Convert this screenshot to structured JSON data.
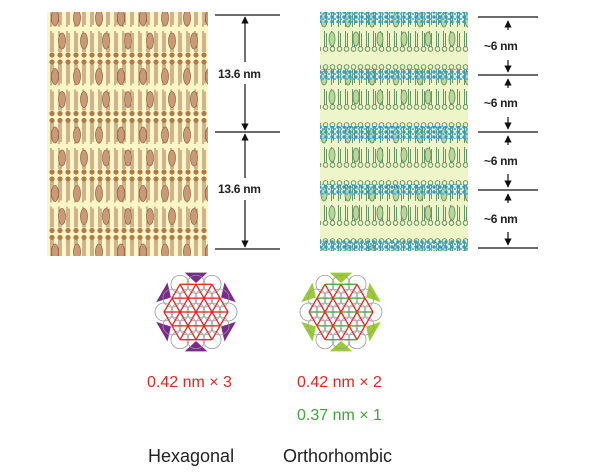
{
  "left_panel": {
    "dimensions": [
      "13.6 nm",
      "13.6 nm"
    ]
  },
  "right_panel": {
    "dimensions": [
      "~6 nm",
      "~6 nm",
      "~6 nm",
      "~6 nm"
    ]
  },
  "hexagonal": {
    "spacings": [
      "0.42 nm × 3"
    ],
    "label": "Hexagonal"
  },
  "orthorhombic": {
    "spacings": [
      "0.42 nm × 2",
      "0.37 nm × 1"
    ],
    "label": "Orthorhombic"
  }
}
